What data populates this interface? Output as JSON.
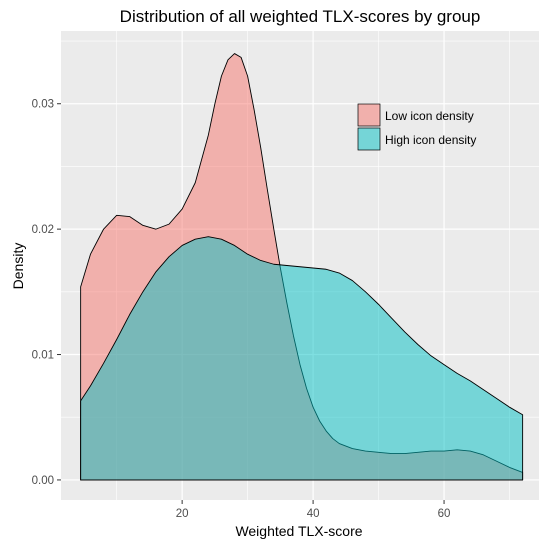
{
  "chart_data": {
    "type": "area",
    "title": "Distribution of all weighted TLX-scores by group",
    "xlabel": "Weighted TLX-score",
    "ylabel": "Density",
    "xlim": [
      1.5,
      74.5
    ],
    "ylim": [
      -0.0016,
      0.0358
    ],
    "x_ticks": [
      20,
      40,
      60
    ],
    "x_tick_labels": [
      "20",
      "40",
      "60"
    ],
    "y_ticks": [
      0,
      0.01,
      0.02,
      0.03
    ],
    "y_tick_labels": [
      "0.00",
      "0.01",
      "0.02",
      "0.03"
    ],
    "grid": true,
    "legend_position": "top-right",
    "series": [
      {
        "name": "Low icon density",
        "color": "#F8766D",
        "x": [
          4.5,
          6,
          8,
          10,
          12,
          14,
          16,
          18,
          20,
          22,
          24,
          25,
          26,
          27,
          28,
          29,
          30,
          31,
          32,
          33,
          34,
          35,
          36,
          37,
          38,
          39,
          40,
          41,
          42,
          43,
          44,
          46,
          48,
          50,
          52,
          54,
          56,
          58,
          60,
          62,
          64,
          66,
          68,
          70,
          72
        ],
        "y": [
          0.0154,
          0.018,
          0.02,
          0.0211,
          0.021,
          0.0203,
          0.02,
          0.0204,
          0.0216,
          0.0237,
          0.0275,
          0.03,
          0.0322,
          0.0335,
          0.034,
          0.0337,
          0.0322,
          0.0295,
          0.0265,
          0.0232,
          0.02,
          0.0169,
          0.0141,
          0.0115,
          0.0092,
          0.0073,
          0.0058,
          0.0047,
          0.0039,
          0.0033,
          0.0029,
          0.0025,
          0.0023,
          0.0022,
          0.0021,
          0.0021,
          0.0022,
          0.0023,
          0.0023,
          0.0024,
          0.0023,
          0.002,
          0.0015,
          0.001,
          0.0006
        ]
      },
      {
        "name": "High icon density",
        "color": "#00BFC4",
        "x": [
          4.5,
          6,
          8,
          10,
          12,
          14,
          16,
          18,
          20,
          22,
          24,
          26,
          28,
          30,
          32,
          34,
          36,
          38,
          40,
          42,
          44,
          46,
          48,
          50,
          52,
          54,
          56,
          58,
          60,
          62,
          64,
          66,
          68,
          70,
          72
        ],
        "y": [
          0.0063,
          0.0075,
          0.0093,
          0.0112,
          0.0132,
          0.015,
          0.0166,
          0.0178,
          0.0187,
          0.0192,
          0.0194,
          0.0192,
          0.0187,
          0.018,
          0.0175,
          0.0172,
          0.0171,
          0.017,
          0.0169,
          0.0168,
          0.0165,
          0.0159,
          0.015,
          0.014,
          0.0129,
          0.0118,
          0.0108,
          0.0099,
          0.0092,
          0.0085,
          0.0079,
          0.0072,
          0.0065,
          0.0058,
          0.0052
        ]
      }
    ]
  }
}
